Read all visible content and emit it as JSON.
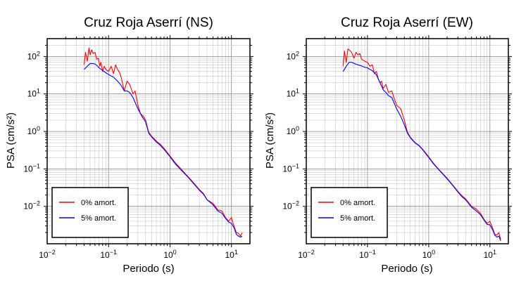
{
  "chart_data": [
    {
      "type": "line",
      "title": "Cruz Roja Aserrí (NS)",
      "xlabel": "Periodo (s)",
      "ylabel": "PSA (cm/s²)",
      "x_scale": "log",
      "y_scale": "log",
      "xlim": [
        0.01,
        20
      ],
      "ylim": [
        0.001,
        300
      ],
      "grid": true,
      "legend_position": "bottom-left",
      "x_ticks": [
        {
          "value": 0.01,
          "base": "10",
          "exp": "−2"
        },
        {
          "value": 0.1,
          "base": "10",
          "exp": "−1"
        },
        {
          "value": 1,
          "base": "10",
          "exp": "0"
        },
        {
          "value": 10,
          "base": "10",
          "exp": "1"
        }
      ],
      "y_ticks": [
        {
          "value": 0.01,
          "base": "10",
          "exp": "−2"
        },
        {
          "value": 0.1,
          "base": "10",
          "exp": "−1"
        },
        {
          "value": 1,
          "base": "10",
          "exp": "0"
        },
        {
          "value": 10,
          "base": "10",
          "exp": "1"
        },
        {
          "value": 100,
          "base": "10",
          "exp": "2"
        }
      ],
      "series": [
        {
          "name": "0% amort.",
          "color": "#ff0000",
          "points": [
            [
              0.04,
              60
            ],
            [
              0.042,
              130
            ],
            [
              0.045,
              75
            ],
            [
              0.048,
              170
            ],
            [
              0.05,
              110
            ],
            [
              0.053,
              150
            ],
            [
              0.056,
              120
            ],
            [
              0.06,
              130
            ],
            [
              0.064,
              85
            ],
            [
              0.068,
              90
            ],
            [
              0.072,
              55
            ],
            [
              0.075,
              70
            ],
            [
              0.08,
              40
            ],
            [
              0.085,
              55
            ],
            [
              0.09,
              45
            ],
            [
              0.1,
              40
            ],
            [
              0.11,
              55
            ],
            [
              0.12,
              35
            ],
            [
              0.13,
              60
            ],
            [
              0.14,
              45
            ],
            [
              0.15,
              38
            ],
            [
              0.16,
              28
            ],
            [
              0.17,
              18
            ],
            [
              0.18,
              12
            ],
            [
              0.2,
              22
            ],
            [
              0.22,
              18
            ],
            [
              0.25,
              10
            ],
            [
              0.27,
              12
            ],
            [
              0.3,
              5
            ],
            [
              0.33,
              3
            ],
            [
              0.37,
              2.5
            ],
            [
              0.4,
              2.0
            ],
            [
              0.45,
              0.95
            ],
            [
              0.5,
              0.75
            ],
            [
              0.6,
              0.55
            ],
            [
              0.7,
              0.45
            ],
            [
              0.8,
              0.35
            ],
            [
              1.0,
              0.22
            ],
            [
              1.2,
              0.15
            ],
            [
              1.5,
              0.1
            ],
            [
              2.0,
              0.06
            ],
            [
              2.5,
              0.04
            ],
            [
              3.0,
              0.028
            ],
            [
              3.5,
              0.022
            ],
            [
              4.0,
              0.015
            ],
            [
              5.0,
              0.012
            ],
            [
              6.0,
              0.008
            ],
            [
              7.0,
              0.0075
            ],
            [
              8.0,
              0.005
            ],
            [
              9.0,
              0.004
            ],
            [
              10.0,
              0.005
            ],
            [
              11.0,
              0.003
            ],
            [
              12.0,
              0.002
            ],
            [
              13.0,
              0.0019
            ],
            [
              14.0,
              0.0016
            ],
            [
              15.0,
              0.002
            ]
          ]
        },
        {
          "name": "5% amort.",
          "color": "#0000ff",
          "points": [
            [
              0.04,
              45
            ],
            [
              0.045,
              55
            ],
            [
              0.05,
              65
            ],
            [
              0.055,
              65
            ],
            [
              0.06,
              63
            ],
            [
              0.065,
              57
            ],
            [
              0.07,
              50
            ],
            [
              0.08,
              42
            ],
            [
              0.09,
              37
            ],
            [
              0.1,
              33
            ],
            [
              0.12,
              28
            ],
            [
              0.14,
              22
            ],
            [
              0.16,
              17
            ],
            [
              0.18,
              12
            ],
            [
              0.2,
              12
            ],
            [
              0.22,
              11
            ],
            [
              0.25,
              8
            ],
            [
              0.3,
              4
            ],
            [
              0.35,
              2.5
            ],
            [
              0.4,
              1.8
            ],
            [
              0.45,
              0.9
            ],
            [
              0.5,
              0.72
            ],
            [
              0.6,
              0.52
            ],
            [
              0.7,
              0.42
            ],
            [
              0.8,
              0.33
            ],
            [
              1.0,
              0.21
            ],
            [
              1.2,
              0.14
            ],
            [
              1.5,
              0.095
            ],
            [
              2.0,
              0.058
            ],
            [
              2.5,
              0.038
            ],
            [
              3.0,
              0.027
            ],
            [
              3.5,
              0.021
            ],
            [
              4.0,
              0.015
            ],
            [
              5.0,
              0.011
            ],
            [
              6.0,
              0.0075
            ],
            [
              7.0,
              0.0065
            ],
            [
              8.0,
              0.0048
            ],
            [
              9.0,
              0.0038
            ],
            [
              10.0,
              0.0035
            ],
            [
              11.0,
              0.0027
            ],
            [
              12.0,
              0.0018
            ],
            [
              13.0,
              0.0016
            ],
            [
              14.0,
              0.0015
            ],
            [
              15.0,
              0.0016
            ]
          ]
        }
      ]
    },
    {
      "type": "line",
      "title": "Cruz Roja Aserrí (EW)",
      "xlabel": "Periodo (s)",
      "ylabel": "PSA (cm/s²)",
      "x_scale": "log",
      "y_scale": "log",
      "xlim": [
        0.01,
        20
      ],
      "ylim": [
        0.001,
        300
      ],
      "grid": true,
      "legend_position": "bottom-left",
      "x_ticks": [
        {
          "value": 0.01,
          "base": "10",
          "exp": "−2"
        },
        {
          "value": 0.1,
          "base": "10",
          "exp": "−1"
        },
        {
          "value": 1,
          "base": "10",
          "exp": "0"
        },
        {
          "value": 10,
          "base": "10",
          "exp": "1"
        }
      ],
      "y_ticks": [
        {
          "value": 0.01,
          "base": "10",
          "exp": "−2"
        },
        {
          "value": 0.1,
          "base": "10",
          "exp": "−1"
        },
        {
          "value": 1,
          "base": "10",
          "exp": "0"
        },
        {
          "value": 10,
          "base": "10",
          "exp": "1"
        },
        {
          "value": 100,
          "base": "10",
          "exp": "2"
        }
      ],
      "series": [
        {
          "name": "0% amort.",
          "color": "#ff0000",
          "points": [
            [
              0.04,
              55
            ],
            [
              0.042,
              140
            ],
            [
              0.045,
              70
            ],
            [
              0.048,
              160
            ],
            [
              0.05,
              150
            ],
            [
              0.055,
              130
            ],
            [
              0.06,
              90
            ],
            [
              0.065,
              130
            ],
            [
              0.07,
              110
            ],
            [
              0.075,
              120
            ],
            [
              0.08,
              85
            ],
            [
              0.09,
              75
            ],
            [
              0.1,
              70
            ],
            [
              0.11,
              55
            ],
            [
              0.12,
              60
            ],
            [
              0.13,
              35
            ],
            [
              0.14,
              40
            ],
            [
              0.15,
              25
            ],
            [
              0.16,
              20
            ],
            [
              0.17,
              22
            ],
            [
              0.18,
              14
            ],
            [
              0.2,
              18
            ],
            [
              0.22,
              11
            ],
            [
              0.25,
              12
            ],
            [
              0.27,
              8
            ],
            [
              0.3,
              5
            ],
            [
              0.35,
              4
            ],
            [
              0.4,
              2
            ],
            [
              0.45,
              0.95
            ],
            [
              0.5,
              0.7
            ],
            [
              0.6,
              0.5
            ],
            [
              0.7,
              0.42
            ],
            [
              0.8,
              0.33
            ],
            [
              1.0,
              0.21
            ],
            [
              1.2,
              0.14
            ],
            [
              1.5,
              0.093
            ],
            [
              2.0,
              0.056
            ],
            [
              2.5,
              0.036
            ],
            [
              3.0,
              0.025
            ],
            [
              3.5,
              0.019
            ],
            [
              4.0,
              0.016
            ],
            [
              5.0,
              0.01
            ],
            [
              6.0,
              0.0085
            ],
            [
              7.0,
              0.0065
            ],
            [
              8.0,
              0.0045
            ],
            [
              9.0,
              0.0035
            ],
            [
              10.0,
              0.004
            ],
            [
              11.0,
              0.0027
            ],
            [
              12.0,
              0.0018
            ],
            [
              13.0,
              0.0017
            ],
            [
              14.0,
              0.002
            ],
            [
              15.0,
              0.0013
            ]
          ]
        },
        {
          "name": "5% amort.",
          "color": "#0000ff",
          "points": [
            [
              0.04,
              40
            ],
            [
              0.045,
              55
            ],
            [
              0.05,
              70
            ],
            [
              0.055,
              70
            ],
            [
              0.06,
              66
            ],
            [
              0.065,
              62
            ],
            [
              0.07,
              60
            ],
            [
              0.08,
              56
            ],
            [
              0.09,
              52
            ],
            [
              0.1,
              50
            ],
            [
              0.11,
              45
            ],
            [
              0.12,
              42
            ],
            [
              0.14,
              32
            ],
            [
              0.16,
              20
            ],
            [
              0.18,
              13
            ],
            [
              0.2,
              11
            ],
            [
              0.22,
              9
            ],
            [
              0.25,
              8
            ],
            [
              0.3,
              4
            ],
            [
              0.35,
              2.5
            ],
            [
              0.4,
              1.5
            ],
            [
              0.45,
              0.9
            ],
            [
              0.5,
              0.68
            ],
            [
              0.6,
              0.49
            ],
            [
              0.7,
              0.41
            ],
            [
              0.8,
              0.32
            ],
            [
              1.0,
              0.2
            ],
            [
              1.2,
              0.135
            ],
            [
              1.5,
              0.09
            ],
            [
              2.0,
              0.054
            ],
            [
              2.5,
              0.035
            ],
            [
              3.0,
              0.024
            ],
            [
              3.5,
              0.018
            ],
            [
              4.0,
              0.015
            ],
            [
              5.0,
              0.0095
            ],
            [
              6.0,
              0.0075
            ],
            [
              7.0,
              0.006
            ],
            [
              8.0,
              0.0043
            ],
            [
              9.0,
              0.0033
            ],
            [
              10.0,
              0.0032
            ],
            [
              11.0,
              0.0024
            ],
            [
              12.0,
              0.0017
            ],
            [
              13.0,
              0.0015
            ],
            [
              14.0,
              0.0016
            ],
            [
              15.0,
              0.0012
            ]
          ]
        }
      ]
    }
  ]
}
